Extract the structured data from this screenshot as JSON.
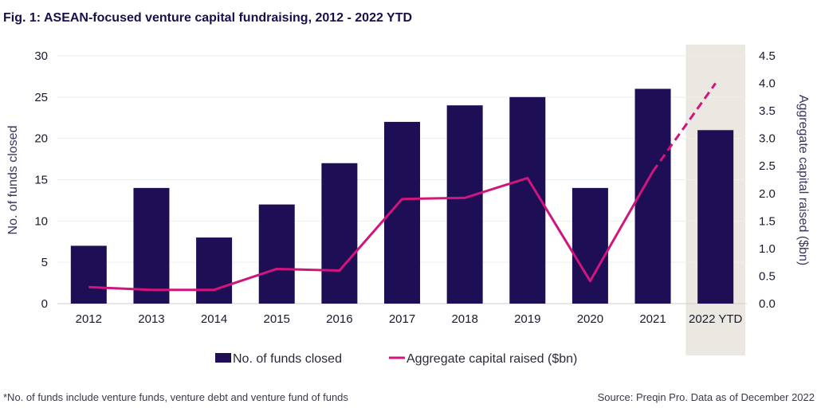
{
  "title": "Fig. 1: ASEAN-focused venture capital fundraising, 2012 - 2022 YTD",
  "footnote": "*No. of funds include venture funds, venture debt and venture fund of funds",
  "source": "Source: Preqin Pro. Data as of December 2022",
  "colors": {
    "bar": "#1e0e55",
    "line": "#d0157d",
    "highlight": "#ebe7e1",
    "grid": "#eeeeee"
  },
  "chart_data": {
    "type": "bar",
    "categories": [
      "2012",
      "2013",
      "2014",
      "2015",
      "2016",
      "2017",
      "2018",
      "2019",
      "2020",
      "2021",
      "2022 YTD"
    ],
    "series": [
      {
        "name": "No. of funds closed",
        "type": "bar",
        "axis": "left",
        "values": [
          7,
          14,
          8,
          12,
          17,
          22,
          24,
          25,
          14,
          26,
          21
        ]
      },
      {
        "name": "Aggregate capital raised ($bn)",
        "type": "line",
        "axis": "right",
        "values": [
          0.3,
          0.25,
          0.25,
          0.63,
          0.6,
          1.9,
          1.92,
          2.28,
          0.41,
          2.4,
          4.0
        ],
        "dashed_from_index": 9
      }
    ],
    "highlighted_category": "2022 YTD",
    "ylabel": "No. of funds closed",
    "ylim": [
      0,
      30
    ],
    "yticks": [
      "0",
      "5",
      "10",
      "15",
      "20",
      "25",
      "30"
    ],
    "y2label": "Aggregate capital raised ($bn)",
    "y2lim": [
      0,
      4.5
    ],
    "y2ticks": [
      "0.0",
      "0.5",
      "1.0",
      "1.5",
      "2.0",
      "2.5",
      "3.0",
      "3.5",
      "4.0",
      "4.5"
    ],
    "legend": [
      "No. of funds closed",
      "Aggregate capital raised ($bn)"
    ],
    "legend_position": "bottom-center"
  }
}
